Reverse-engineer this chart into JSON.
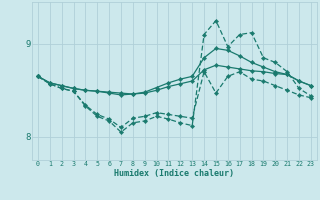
{
  "xlabel": "Humidex (Indice chaleur)",
  "background_color": "#cce8ec",
  "line_color": "#1a7a6e",
  "grid_color": "#b0d0d8",
  "xlim": [
    -0.5,
    23.5
  ],
  "ylim": [
    7.75,
    9.45
  ],
  "yticks": [
    8,
    9
  ],
  "xticks": [
    0,
    1,
    2,
    3,
    4,
    5,
    6,
    7,
    8,
    9,
    10,
    11,
    12,
    13,
    14,
    15,
    16,
    17,
    18,
    19,
    20,
    21,
    22,
    23
  ],
  "line1_x": [
    0,
    1,
    2,
    3,
    4,
    5,
    6,
    7,
    8,
    9,
    10,
    11,
    12,
    13,
    14,
    15,
    16,
    17,
    18,
    19,
    20,
    21,
    22,
    23
  ],
  "line1_y": [
    8.65,
    8.58,
    8.55,
    8.52,
    8.5,
    8.49,
    8.48,
    8.47,
    8.46,
    8.47,
    8.5,
    8.54,
    8.57,
    8.6,
    8.72,
    8.77,
    8.75,
    8.73,
    8.71,
    8.7,
    8.68,
    8.67,
    8.6,
    8.55
  ],
  "line2_x": [
    0,
    1,
    2,
    3,
    4,
    5,
    6,
    7,
    8,
    9,
    10,
    11,
    12,
    13,
    14,
    15,
    16,
    17,
    18,
    19,
    20,
    21,
    22,
    23
  ],
  "line2_y": [
    8.65,
    8.58,
    8.55,
    8.52,
    8.5,
    8.49,
    8.47,
    8.45,
    8.46,
    8.48,
    8.53,
    8.58,
    8.62,
    8.65,
    8.85,
    8.95,
    8.93,
    8.87,
    8.8,
    8.75,
    8.7,
    8.67,
    8.6,
    8.55
  ],
  "line3_x": [
    0,
    1,
    2,
    3,
    4,
    5,
    6,
    7,
    8,
    9,
    10,
    11,
    12,
    13,
    14,
    15,
    16,
    17,
    18,
    19,
    20,
    21,
    22,
    23
  ],
  "line3_y": [
    8.65,
    8.57,
    8.52,
    8.49,
    8.34,
    8.24,
    8.19,
    8.1,
    8.2,
    8.22,
    8.26,
    8.24,
    8.22,
    8.2,
    8.7,
    8.47,
    8.65,
    8.7,
    8.62,
    8.6,
    8.55,
    8.5,
    8.45,
    8.42
  ],
  "line4_x": [
    0,
    1,
    2,
    3,
    4,
    5,
    6,
    7,
    8,
    9,
    10,
    11,
    12,
    13,
    14,
    15,
    16,
    17,
    18,
    19,
    20,
    21,
    22,
    23
  ],
  "line4_y": [
    8.65,
    8.57,
    8.52,
    8.49,
    8.33,
    8.22,
    8.17,
    8.05,
    8.15,
    8.17,
    8.22,
    8.19,
    8.15,
    8.12,
    9.1,
    9.25,
    8.97,
    9.1,
    9.12,
    8.85,
    8.8,
    8.7,
    8.52,
    8.44
  ]
}
